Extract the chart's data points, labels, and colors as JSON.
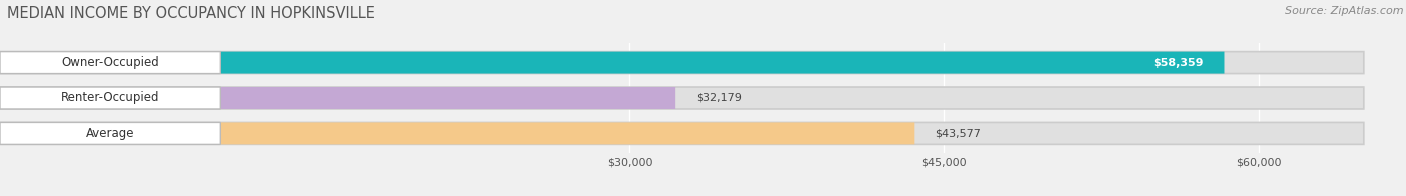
{
  "title": "MEDIAN INCOME BY OCCUPANCY IN HOPKINSVILLE",
  "source": "Source: ZipAtlas.com",
  "categories": [
    "Owner-Occupied",
    "Renter-Occupied",
    "Average"
  ],
  "values": [
    58359,
    32179,
    43577
  ],
  "labels": [
    "$58,359",
    "$32,179",
    "$43,577"
  ],
  "bar_colors": [
    "#1ab5b8",
    "#c4a8d4",
    "#f5c98a"
  ],
  "label_inside": [
    true,
    false,
    false
  ],
  "xmax": 65000,
  "xticks": [
    30000,
    45000,
    60000
  ],
  "xticklabels": [
    "$30,000",
    "$45,000",
    "$60,000"
  ],
  "title_fontsize": 10.5,
  "source_fontsize": 8,
  "value_fontsize": 8,
  "cat_fontsize": 8.5,
  "figsize": [
    14.06,
    1.96
  ],
  "dpi": 100,
  "bg_color": "#f0f0f0",
  "bar_bg_color": "#e0e0e0",
  "white_label_bg": "#ffffff",
  "grid_color": "#cccccc"
}
